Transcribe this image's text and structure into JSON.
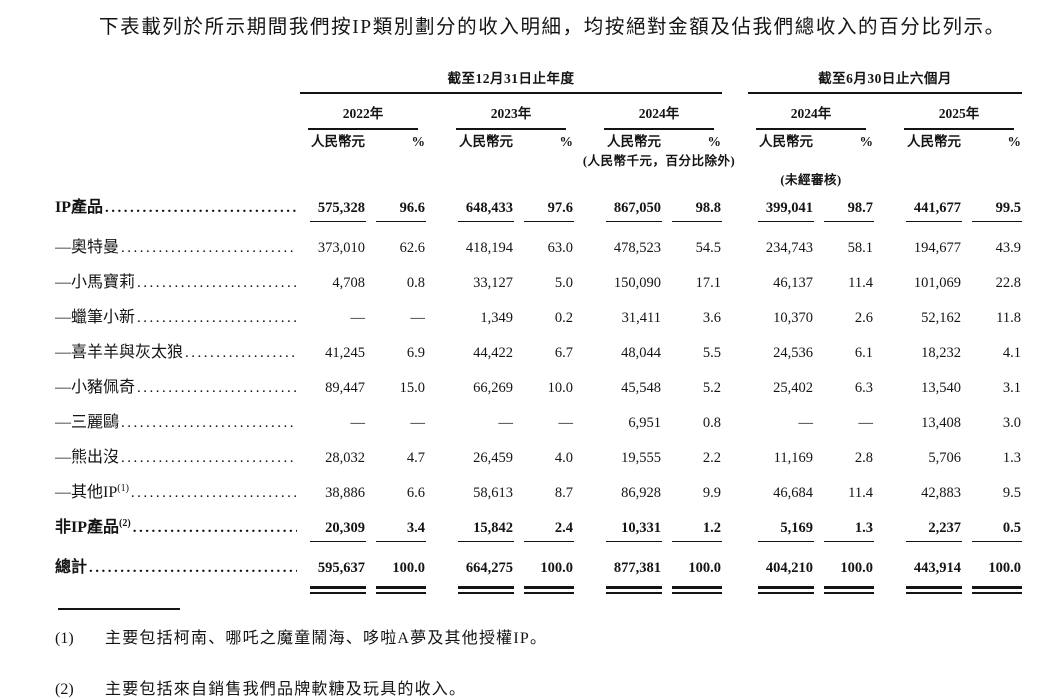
{
  "intro": "下表載列於所示期間我們按IP類別劃分的收入明細，均按絕對金額及佔我們總收入的百分比列示。",
  "table": {
    "col_groups": [
      {
        "title": "截至12月31日止年度",
        "years": [
          "2022年",
          "2023年",
          "2024年"
        ]
      },
      {
        "title": "截至6月30日止六個月",
        "years": [
          "2024年",
          "2025年"
        ]
      }
    ],
    "unit_label": "人民幣元",
    "pct_label": "%",
    "note_units": "(人民幣千元，百分比除外)",
    "note_unaudited": "(未經審核)",
    "rows": [
      {
        "label": "IP產品",
        "sup": "",
        "bold": true,
        "rule_below": true,
        "values": [
          "575,328",
          "96.6",
          "648,433",
          "97.6",
          "867,050",
          "98.8",
          "399,041",
          "98.7",
          "441,677",
          "99.5"
        ]
      },
      {
        "label": "—奧特曼",
        "sup": "",
        "bold": false,
        "values": [
          "373,010",
          "62.6",
          "418,194",
          "63.0",
          "478,523",
          "54.5",
          "234,743",
          "58.1",
          "194,677",
          "43.9"
        ]
      },
      {
        "label": "—小馬寶莉",
        "sup": "",
        "bold": false,
        "values": [
          "4,708",
          "0.8",
          "33,127",
          "5.0",
          "150,090",
          "17.1",
          "46,137",
          "11.4",
          "101,069",
          "22.8"
        ]
      },
      {
        "label": "—蠟筆小新",
        "sup": "",
        "bold": false,
        "values": [
          "—",
          "—",
          "1,349",
          "0.2",
          "31,411",
          "3.6",
          "10,370",
          "2.6",
          "52,162",
          "11.8"
        ]
      },
      {
        "label": "—喜羊羊與灰太狼",
        "sup": "",
        "bold": false,
        "values": [
          "41,245",
          "6.9",
          "44,422",
          "6.7",
          "48,044",
          "5.5",
          "24,536",
          "6.1",
          "18,232",
          "4.1"
        ]
      },
      {
        "label": "—小豬佩奇",
        "sup": "",
        "bold": false,
        "values": [
          "89,447",
          "15.0",
          "66,269",
          "10.0",
          "45,548",
          "5.2",
          "25,402",
          "6.3",
          "13,540",
          "3.1"
        ]
      },
      {
        "label": "—三麗鷗",
        "sup": "",
        "bold": false,
        "values": [
          "—",
          "—",
          "—",
          "—",
          "6,951",
          "0.8",
          "—",
          "—",
          "13,408",
          "3.0"
        ]
      },
      {
        "label": "—熊出沒",
        "sup": "",
        "bold": false,
        "values": [
          "28,032",
          "4.7",
          "26,459",
          "4.0",
          "19,555",
          "2.2",
          "11,169",
          "2.8",
          "5,706",
          "1.3"
        ]
      },
      {
        "label": "—其他IP",
        "sup": "(1)",
        "bold": false,
        "values": [
          "38,886",
          "6.6",
          "58,613",
          "8.7",
          "86,928",
          "9.9",
          "46,684",
          "11.4",
          "42,883",
          "9.5"
        ]
      },
      {
        "label": "非IP產品",
        "sup": "(2)",
        "bold": true,
        "rule_below": true,
        "values": [
          "20,309",
          "3.4",
          "15,842",
          "2.4",
          "10,331",
          "1.2",
          "5,169",
          "1.3",
          "2,237",
          "0.5"
        ]
      },
      {
        "label": "總計",
        "sup": "",
        "bold": true,
        "double_rule_below": true,
        "values": [
          "595,637",
          "100.0",
          "664,275",
          "100.0",
          "877,381",
          "100.0",
          "404,210",
          "100.0",
          "443,914",
          "100.0"
        ]
      }
    ]
  },
  "footnotes": [
    {
      "marker": "(1)",
      "text": "主要包括柯南、哪吒之魔童鬧海、哆啦A夢及其他授權IP。"
    },
    {
      "marker": "(2)",
      "text": "主要包括來自銷售我們品牌軟糖及玩具的收入。"
    }
  ]
}
